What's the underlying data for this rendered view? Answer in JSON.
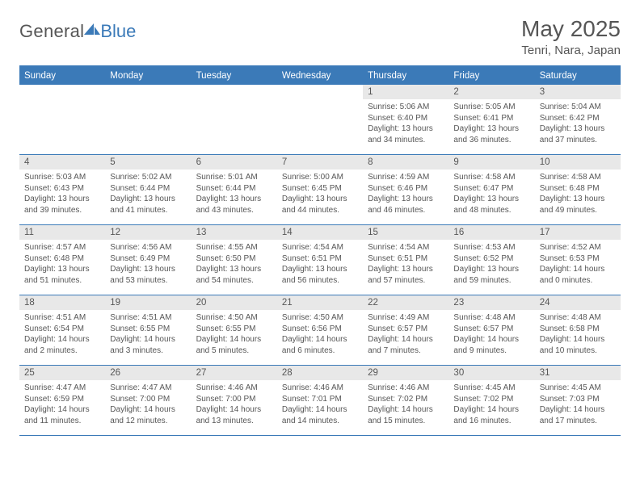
{
  "brand": {
    "part1": "General",
    "part2": "Blue"
  },
  "colors": {
    "accent": "#3b7ab8",
    "text": "#565656",
    "daynum_bg": "#e8e8e8"
  },
  "title": "May 2025",
  "location": "Tenri, Nara, Japan",
  "weekdays": [
    "Sunday",
    "Monday",
    "Tuesday",
    "Wednesday",
    "Thursday",
    "Friday",
    "Saturday"
  ],
  "weeks": [
    [
      {
        "empty": true
      },
      {
        "empty": true
      },
      {
        "empty": true
      },
      {
        "empty": true
      },
      {
        "n": "1",
        "sr": "Sunrise: 5:06 AM",
        "ss": "Sunset: 6:40 PM",
        "d1": "Daylight: 13 hours",
        "d2": "and 34 minutes."
      },
      {
        "n": "2",
        "sr": "Sunrise: 5:05 AM",
        "ss": "Sunset: 6:41 PM",
        "d1": "Daylight: 13 hours",
        "d2": "and 36 minutes."
      },
      {
        "n": "3",
        "sr": "Sunrise: 5:04 AM",
        "ss": "Sunset: 6:42 PM",
        "d1": "Daylight: 13 hours",
        "d2": "and 37 minutes."
      }
    ],
    [
      {
        "n": "4",
        "sr": "Sunrise: 5:03 AM",
        "ss": "Sunset: 6:43 PM",
        "d1": "Daylight: 13 hours",
        "d2": "and 39 minutes."
      },
      {
        "n": "5",
        "sr": "Sunrise: 5:02 AM",
        "ss": "Sunset: 6:44 PM",
        "d1": "Daylight: 13 hours",
        "d2": "and 41 minutes."
      },
      {
        "n": "6",
        "sr": "Sunrise: 5:01 AM",
        "ss": "Sunset: 6:44 PM",
        "d1": "Daylight: 13 hours",
        "d2": "and 43 minutes."
      },
      {
        "n": "7",
        "sr": "Sunrise: 5:00 AM",
        "ss": "Sunset: 6:45 PM",
        "d1": "Daylight: 13 hours",
        "d2": "and 44 minutes."
      },
      {
        "n": "8",
        "sr": "Sunrise: 4:59 AM",
        "ss": "Sunset: 6:46 PM",
        "d1": "Daylight: 13 hours",
        "d2": "and 46 minutes."
      },
      {
        "n": "9",
        "sr": "Sunrise: 4:58 AM",
        "ss": "Sunset: 6:47 PM",
        "d1": "Daylight: 13 hours",
        "d2": "and 48 minutes."
      },
      {
        "n": "10",
        "sr": "Sunrise: 4:58 AM",
        "ss": "Sunset: 6:48 PM",
        "d1": "Daylight: 13 hours",
        "d2": "and 49 minutes."
      }
    ],
    [
      {
        "n": "11",
        "sr": "Sunrise: 4:57 AM",
        "ss": "Sunset: 6:48 PM",
        "d1": "Daylight: 13 hours",
        "d2": "and 51 minutes."
      },
      {
        "n": "12",
        "sr": "Sunrise: 4:56 AM",
        "ss": "Sunset: 6:49 PM",
        "d1": "Daylight: 13 hours",
        "d2": "and 53 minutes."
      },
      {
        "n": "13",
        "sr": "Sunrise: 4:55 AM",
        "ss": "Sunset: 6:50 PM",
        "d1": "Daylight: 13 hours",
        "d2": "and 54 minutes."
      },
      {
        "n": "14",
        "sr": "Sunrise: 4:54 AM",
        "ss": "Sunset: 6:51 PM",
        "d1": "Daylight: 13 hours",
        "d2": "and 56 minutes."
      },
      {
        "n": "15",
        "sr": "Sunrise: 4:54 AM",
        "ss": "Sunset: 6:51 PM",
        "d1": "Daylight: 13 hours",
        "d2": "and 57 minutes."
      },
      {
        "n": "16",
        "sr": "Sunrise: 4:53 AM",
        "ss": "Sunset: 6:52 PM",
        "d1": "Daylight: 13 hours",
        "d2": "and 59 minutes."
      },
      {
        "n": "17",
        "sr": "Sunrise: 4:52 AM",
        "ss": "Sunset: 6:53 PM",
        "d1": "Daylight: 14 hours",
        "d2": "and 0 minutes."
      }
    ],
    [
      {
        "n": "18",
        "sr": "Sunrise: 4:51 AM",
        "ss": "Sunset: 6:54 PM",
        "d1": "Daylight: 14 hours",
        "d2": "and 2 minutes."
      },
      {
        "n": "19",
        "sr": "Sunrise: 4:51 AM",
        "ss": "Sunset: 6:55 PM",
        "d1": "Daylight: 14 hours",
        "d2": "and 3 minutes."
      },
      {
        "n": "20",
        "sr": "Sunrise: 4:50 AM",
        "ss": "Sunset: 6:55 PM",
        "d1": "Daylight: 14 hours",
        "d2": "and 5 minutes."
      },
      {
        "n": "21",
        "sr": "Sunrise: 4:50 AM",
        "ss": "Sunset: 6:56 PM",
        "d1": "Daylight: 14 hours",
        "d2": "and 6 minutes."
      },
      {
        "n": "22",
        "sr": "Sunrise: 4:49 AM",
        "ss": "Sunset: 6:57 PM",
        "d1": "Daylight: 14 hours",
        "d2": "and 7 minutes."
      },
      {
        "n": "23",
        "sr": "Sunrise: 4:48 AM",
        "ss": "Sunset: 6:57 PM",
        "d1": "Daylight: 14 hours",
        "d2": "and 9 minutes."
      },
      {
        "n": "24",
        "sr": "Sunrise: 4:48 AM",
        "ss": "Sunset: 6:58 PM",
        "d1": "Daylight: 14 hours",
        "d2": "and 10 minutes."
      }
    ],
    [
      {
        "n": "25",
        "sr": "Sunrise: 4:47 AM",
        "ss": "Sunset: 6:59 PM",
        "d1": "Daylight: 14 hours",
        "d2": "and 11 minutes."
      },
      {
        "n": "26",
        "sr": "Sunrise: 4:47 AM",
        "ss": "Sunset: 7:00 PM",
        "d1": "Daylight: 14 hours",
        "d2": "and 12 minutes."
      },
      {
        "n": "27",
        "sr": "Sunrise: 4:46 AM",
        "ss": "Sunset: 7:00 PM",
        "d1": "Daylight: 14 hours",
        "d2": "and 13 minutes."
      },
      {
        "n": "28",
        "sr": "Sunrise: 4:46 AM",
        "ss": "Sunset: 7:01 PM",
        "d1": "Daylight: 14 hours",
        "d2": "and 14 minutes."
      },
      {
        "n": "29",
        "sr": "Sunrise: 4:46 AM",
        "ss": "Sunset: 7:02 PM",
        "d1": "Daylight: 14 hours",
        "d2": "and 15 minutes."
      },
      {
        "n": "30",
        "sr": "Sunrise: 4:45 AM",
        "ss": "Sunset: 7:02 PM",
        "d1": "Daylight: 14 hours",
        "d2": "and 16 minutes."
      },
      {
        "n": "31",
        "sr": "Sunrise: 4:45 AM",
        "ss": "Sunset: 7:03 PM",
        "d1": "Daylight: 14 hours",
        "d2": "and 17 minutes."
      }
    ]
  ]
}
